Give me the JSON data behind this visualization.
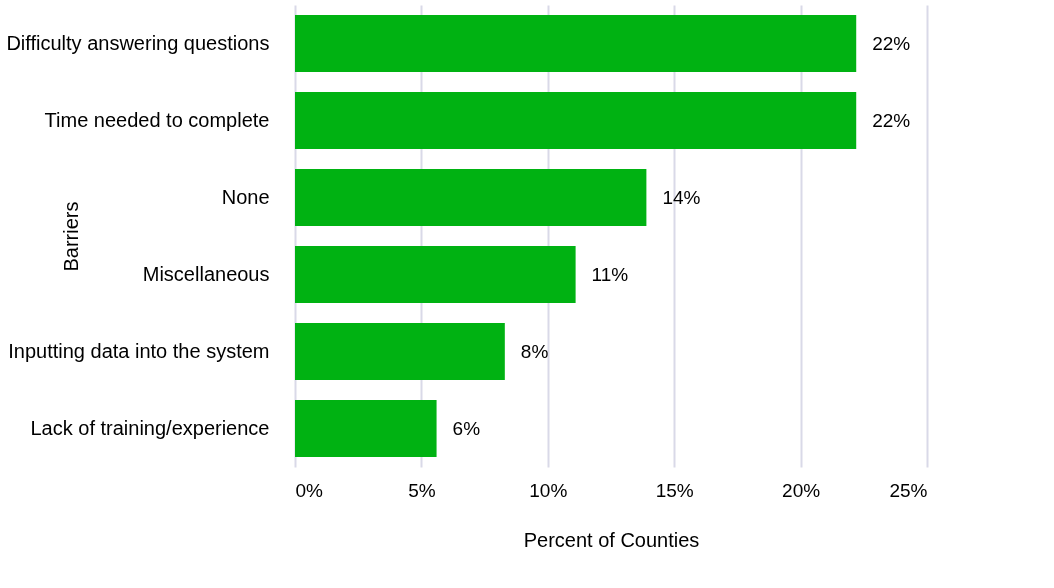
{
  "chart_data": {
    "type": "bar",
    "orientation": "horizontal",
    "categories": [
      "Difficulty answering questions",
      "Time needed to complete",
      "None",
      "Miscellaneous",
      "Inputting data into the system",
      "Lack of training/experience"
    ],
    "values": [
      22.2,
      22.2,
      13.9,
      11.1,
      8.3,
      5.6
    ],
    "value_labels": [
      "22%",
      "22%",
      "14%",
      "11%",
      "8%",
      "6%"
    ],
    "color": "#00b212",
    "xlim": [
      0,
      25
    ],
    "xticks": [
      {
        "value": 0,
        "label": "0%"
      },
      {
        "value": 5,
        "label": "5%"
      },
      {
        "value": 10,
        "label": "10%"
      },
      {
        "value": 15,
        "label": "15%"
      },
      {
        "value": 20,
        "label": "20%"
      },
      {
        "value": 25,
        "label": "25%"
      }
    ],
    "xlabel": "Percent of Counties",
    "ylabel": "Barriers",
    "grid": "x"
  }
}
